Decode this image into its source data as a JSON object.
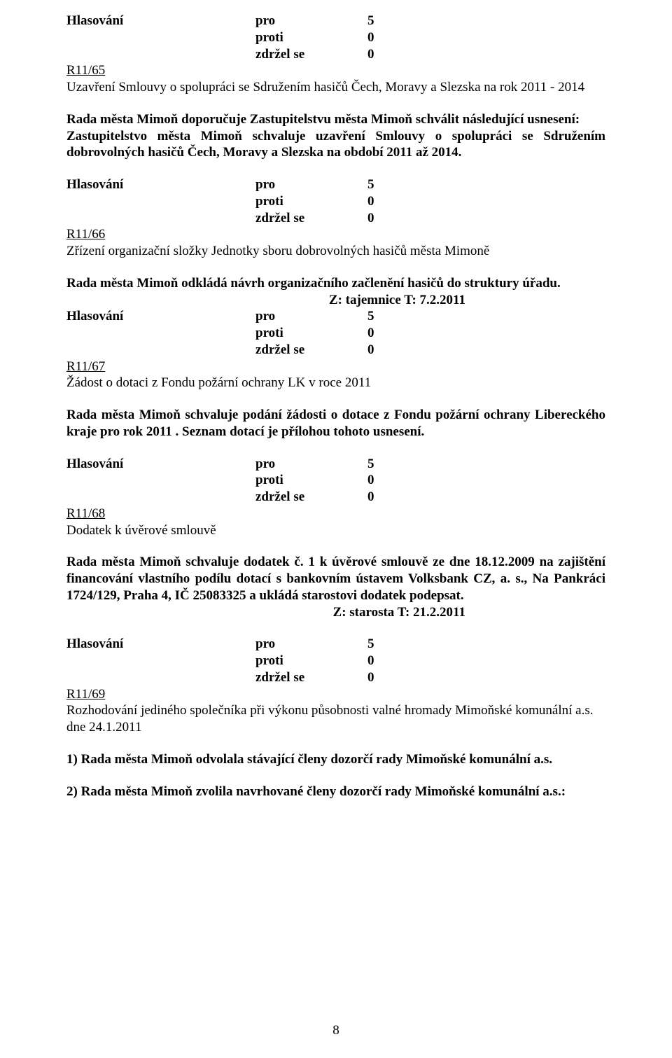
{
  "doc": {
    "vote_label": "Hlasování",
    "pro_label": "pro",
    "proti_label": "proti",
    "zdrzel_label": "zdržel se",
    "pro_count": "5",
    "proti_count": "0",
    "zdrzel_count": "0",
    "page_number": "8"
  },
  "s65": {
    "ref": "R11/65",
    "title": "Uzavření Smlouvy o spolupráci se Sdružením hasičů Čech, Moravy a Slezska na rok 2011 - 2014",
    "para1": "Rada města Mimoň doporučuje Zastupitelstvu města Mimoň schválit následující usnesení:",
    "para2": "Zastupitelstvo města Mimoň schvaluje uzavření Smlouvy o spolupráci se Sdružením dobrovolných hasičů Čech, Moravy a Slezska na období 2011 až 2014."
  },
  "s66": {
    "ref": "R11/66",
    "title": "Zřízení organizační složky Jednotky sboru dobrovolných hasičů města Mimoně",
    "para": "Rada města Mimoň odkládá návrh organizačního začlenění hasičů do struktury úřadu.",
    "deadline": "Z: tajemnice T: 7.2.2011"
  },
  "s67": {
    "ref": "R11/67",
    "title": "Žádost o dotaci z Fondu požární ochrany LK v roce 2011",
    "para": "Rada města Mimoň schvaluje podání žádosti o dotace z Fondu požární ochrany Libereckého kraje pro rok 2011 . Seznam dotací je přílohou tohoto usnesení."
  },
  "s68": {
    "ref": "R11/68",
    "title": "Dodatek k úvěrové smlouvě",
    "para": "Rada města Mimoň schvaluje dodatek č. 1 k úvěrové smlouvě ze dne 18.12.2009 na zajištění financování vlastního podílu dotací s bankovním ústavem Volksbank CZ, a. s., Na Pankráci 1724/129, Praha 4, IČ 25083325 a ukládá starostovi dodatek podepsat.",
    "deadline": "Z: starosta  T: 21.2.2011"
  },
  "s69": {
    "ref": "R11/69",
    "title": "Rozhodování jediného společníka při výkonu působnosti valné hromady Mimoňské komunální a.s. dne 24.1.2011",
    "para1": "1) Rada města Mimoň odvolala stávající členy dozorčí rady Mimoňské komunální a.s.",
    "para2": "2) Rada města Mimoň zvolila navrhované členy dozorčí rady Mimoňské komunální a.s.:"
  }
}
